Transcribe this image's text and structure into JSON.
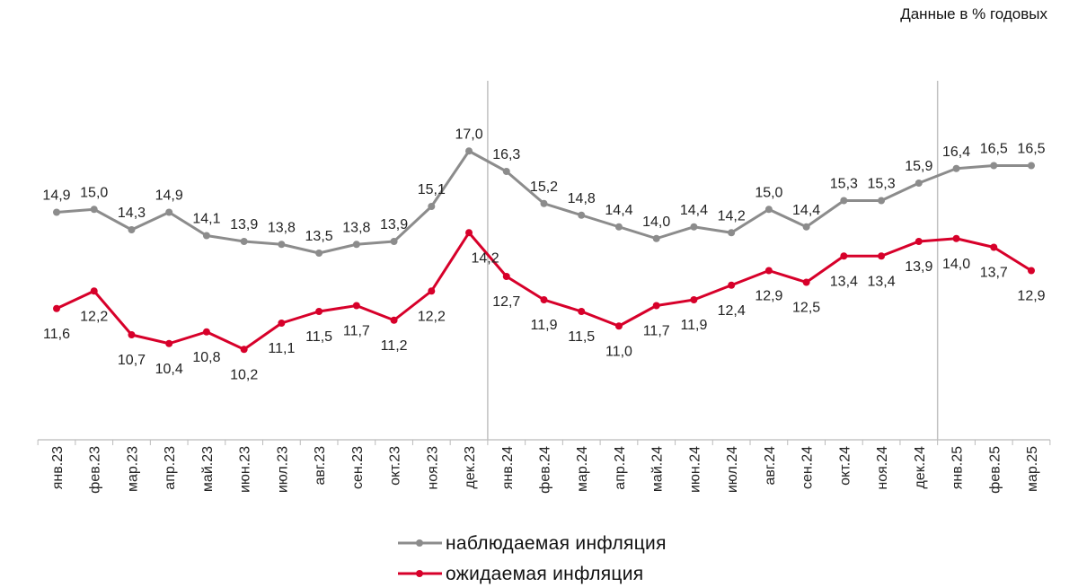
{
  "chart_data": {
    "type": "line",
    "units_note": "Данные в % годовых",
    "categories": [
      "янв.23",
      "фев.23",
      "мар.23",
      "апр.23",
      "май.23",
      "июн.23",
      "июл.23",
      "авг.23",
      "сен.23",
      "окт.23",
      "ноя.23",
      "дек.23",
      "янв.24",
      "фев.24",
      "мар.24",
      "апр.24",
      "май.24",
      "июн.24",
      "июл.24",
      "авг.24",
      "сен.24",
      "окт.24",
      "ноя.24",
      "дек.24",
      "янв.25",
      "фев.25",
      "мар.25"
    ],
    "series": [
      {
        "name": "наблюдаемая  инфляция",
        "color": "#8c8c8c",
        "values": [
          14.9,
          15.0,
          14.3,
          14.9,
          14.1,
          13.9,
          13.8,
          13.5,
          13.8,
          13.9,
          15.1,
          17.0,
          16.3,
          15.2,
          14.8,
          14.4,
          14.0,
          14.4,
          14.2,
          15.0,
          14.4,
          15.3,
          15.3,
          15.9,
          16.4,
          16.5,
          16.5
        ],
        "labels": [
          "14,9",
          "15,0",
          "14,3",
          "14,9",
          "14,1",
          "13,9",
          "13,8",
          "13,5",
          "13,8",
          "13,9",
          "15,1",
          "17,0",
          "16,3",
          "15,2",
          "14,8",
          "14,4",
          "14,0",
          "14,4",
          "14,2",
          "15,0",
          "14,4",
          "15,3",
          "15,3",
          "15,9",
          "16,4",
          "16,5",
          "16,5"
        ]
      },
      {
        "name": "ожидаемая  инфляция",
        "color": "#d7002a",
        "values": [
          11.6,
          12.2,
          10.7,
          10.4,
          10.8,
          10.2,
          11.1,
          11.5,
          11.7,
          11.2,
          12.2,
          14.2,
          12.7,
          11.9,
          11.5,
          11.0,
          11.7,
          11.9,
          12.4,
          12.9,
          12.5,
          13.4,
          13.4,
          13.9,
          14.0,
          13.7,
          12.9
        ],
        "labels": [
          "11,6",
          "12,2",
          "10,7",
          "10,4",
          "10,8",
          "10,2",
          "11,1",
          "11,5",
          "11,7",
          "11,2",
          "12,2",
          "14,2",
          "12,7",
          "11,9",
          "11,5",
          "11,0",
          "11,7",
          "11,9",
          "12,4",
          "12,9",
          "12,5",
          "13,4",
          "13,4",
          "13,9",
          "14,0",
          "13,7",
          "12,9"
        ]
      }
    ],
    "ylim": [
      7.1,
      19.5
    ],
    "grid": false,
    "year_separators_after": [
      "дек.23",
      "дек.24"
    ],
    "legend_placement": "bottom-center"
  }
}
